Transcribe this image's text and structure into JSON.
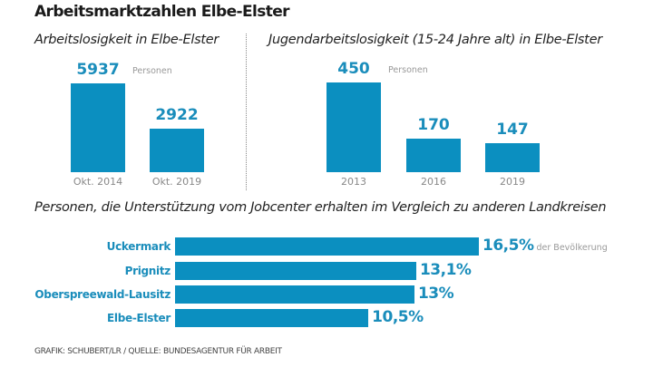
{
  "title": "Arbeitsmarktzahlen Elbe-Elster",
  "footer": "GRAFIK: SCHUBERT/LR / QUELLE: BUNDESAGENTUR FÜR ARBEIT",
  "colors": {
    "bar": "#0b8fc0",
    "value_text": "#1a8dbb",
    "unit_text": "#999999"
  },
  "chart_data": [
    {
      "type": "bar",
      "title": "Arbeitslosigkeit in Elbe-Elster",
      "categories": [
        "Okt. 2014",
        "Okt. 2019"
      ],
      "values": [
        5937,
        2922
      ],
      "value_labels": [
        "5937",
        "2922"
      ],
      "unit": "Personen"
    },
    {
      "type": "bar",
      "title": "Jugendarbeitslosigkeit (15-24 Jahre alt) in Elbe-Elster",
      "categories": [
        "2013",
        "2016",
        "2019"
      ],
      "values": [
        450,
        170,
        147
      ],
      "value_labels": [
        "450",
        "170",
        "147"
      ],
      "unit": "Personen"
    },
    {
      "type": "bar",
      "orientation": "horizontal",
      "title": "Personen, die Unterstützung vom Jobcenter erhalten im Vergleich zu anderen Landkreisen",
      "categories": [
        "Uckermark",
        "Prignitz",
        "Oberspreewald-Lausitz",
        "Elbe-Elster"
      ],
      "values": [
        16.5,
        13.1,
        13,
        10.5
      ],
      "value_labels": [
        "16,5%",
        "13,1%",
        "13%",
        "10,5%"
      ],
      "unit": "der Bevölkerung"
    }
  ]
}
